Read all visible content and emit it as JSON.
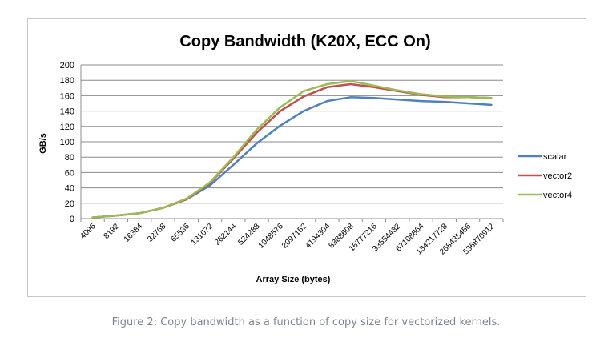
{
  "chart_data": {
    "type": "line",
    "title": "Copy Bandwidth (K20X, ECC On)",
    "xlabel": "Array Size (bytes)",
    "ylabel": "GB/s",
    "ylim": [
      0,
      200
    ],
    "yticks": [
      0,
      20,
      40,
      60,
      80,
      100,
      120,
      140,
      160,
      180,
      200
    ],
    "grid": "horizontal",
    "legend_position": "right",
    "categories": [
      "4096",
      "8192",
      "16384",
      "32768",
      "65536",
      "131072",
      "262144",
      "524288",
      "1048576",
      "2097152",
      "4194304",
      "8388608",
      "16777216",
      "33554432",
      "67108864",
      "134217728",
      "268435456",
      "536870912"
    ],
    "series": [
      {
        "name": "scalar",
        "color": "#4f81bd",
        "values": [
          1.5,
          4,
          7,
          14,
          25,
          43,
          70,
          98,
          121,
          140,
          153,
          158,
          157,
          155,
          153,
          152,
          150,
          148
        ]
      },
      {
        "name": "vector2",
        "color": "#c0504d",
        "values": [
          1.5,
          4,
          7,
          14,
          25,
          46,
          78,
          112,
          140,
          159,
          171,
          175,
          171,
          166,
          161,
          158,
          158,
          157
        ]
      },
      {
        "name": "vector4",
        "color": "#9bbb59",
        "values": [
          1.5,
          4,
          7,
          14,
          26,
          47,
          80,
          116,
          145,
          166,
          175,
          179,
          173,
          167,
          162,
          159,
          158,
          157
        ]
      }
    ]
  },
  "caption": "Figure 2: Copy bandwidth as a function of copy size for vectorized kernels."
}
